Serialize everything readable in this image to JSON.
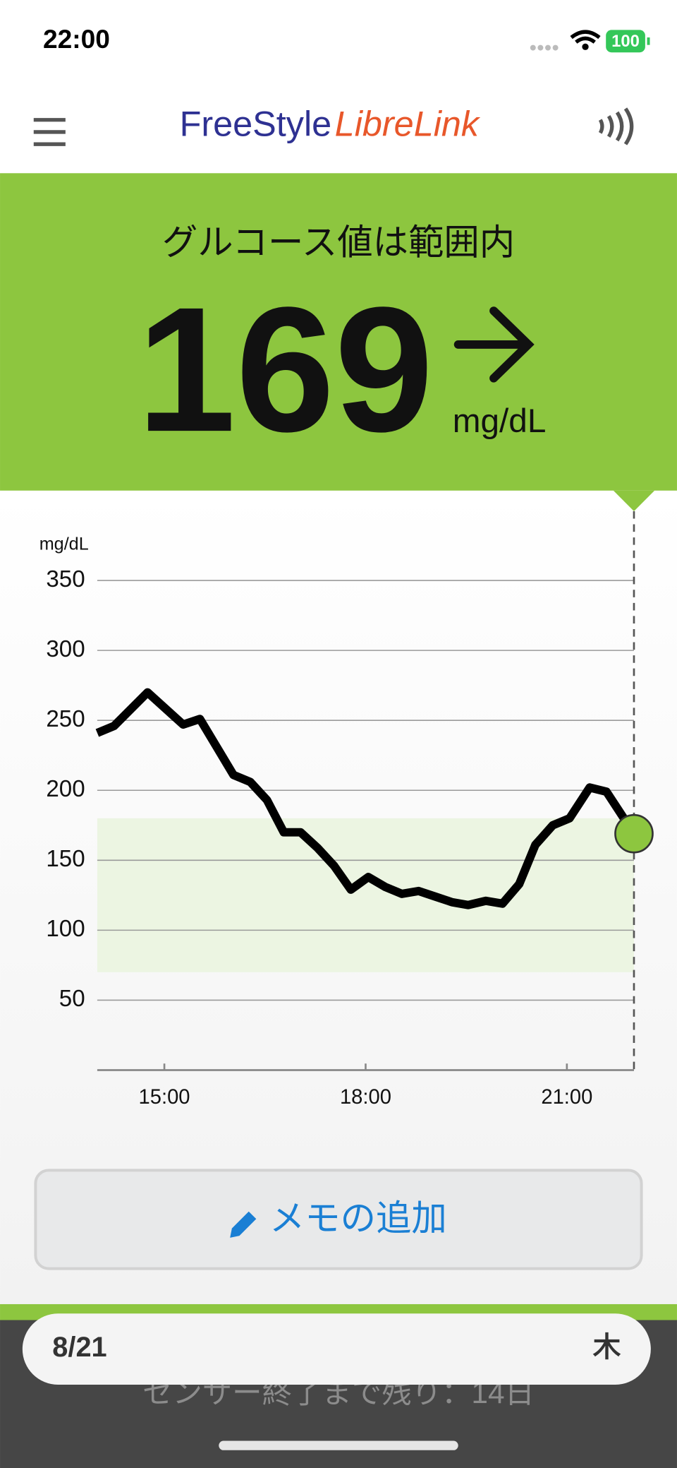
{
  "status_bar": {
    "time": "22:00",
    "battery": "100"
  },
  "header": {
    "brand_1": "FreeStyle",
    "brand_2": "LibreLink"
  },
  "reading": {
    "status": "グルコース値は範囲内",
    "value": "169",
    "unit": "mg/dL"
  },
  "chart_data": {
    "type": "line",
    "y_label": "mg/dL",
    "xlim": [
      14,
      22
    ],
    "xticks": [
      {
        "value": 15,
        "label": "15:00"
      },
      {
        "value": 18,
        "label": "18:00"
      },
      {
        "value": 21,
        "label": "21:00"
      }
    ],
    "ylim": [
      0,
      350
    ],
    "yticks": [
      50,
      100,
      150,
      200,
      250,
      300,
      350
    ],
    "grid": true,
    "target_range": [
      70,
      180
    ],
    "target_color": "#ecf5e2",
    "series": [
      {
        "name": "glucose",
        "color": "#000000",
        "x": [
          14.0,
          14.25,
          14.75,
          15.28,
          15.53,
          15.78,
          16.03,
          16.28,
          16.53,
          16.78,
          17.03,
          17.28,
          17.53,
          17.78,
          18.04,
          18.29,
          18.54,
          18.79,
          19.04,
          19.29,
          19.53,
          19.79,
          20.04,
          20.29,
          20.53,
          20.79,
          21.04,
          21.34,
          21.59,
          22.0
        ],
        "values": [
          241,
          246,
          270,
          247,
          251,
          231,
          211,
          206,
          193,
          170,
          170,
          159,
          146,
          129,
          138,
          131,
          126,
          128,
          124,
          120,
          118,
          121,
          119,
          133,
          161,
          175,
          180,
          202,
          199,
          169
        ]
      }
    ],
    "current_color": "#8dc63f"
  },
  "memo_button": {
    "label": "メモの追加"
  },
  "footer": {
    "date": "8/21",
    "weekday": "木",
    "sensor": "センサー終了まで残り：14日"
  }
}
